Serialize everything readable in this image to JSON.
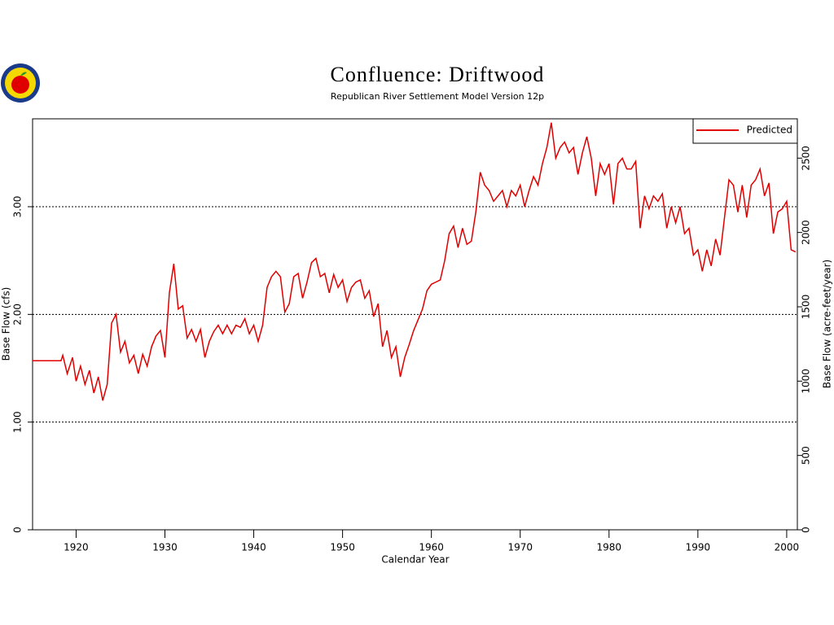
{
  "chart_data": {
    "type": "line",
    "title": "Confluence:  Driftwood",
    "subtitle": "Republican River Settlement Model Version 12p",
    "x_label": "Calendar Year",
    "y_label": "Base Flow (cfs)",
    "y2_label": "Base Flow (acre-feet/year)",
    "legend": "upper right",
    "xlim": [
      1915.1,
      2001.2
    ],
    "xticks": [
      1920,
      1930,
      1940,
      1950,
      1960,
      1970,
      1980,
      1990,
      2000
    ],
    "ylim": [
      0,
      3.816
    ],
    "yticks": [
      0,
      {
        "value": 1,
        "label": "1.00"
      },
      {
        "value": 2,
        "label": "2.00"
      },
      {
        "value": 3,
        "label": "3.00"
      }
    ],
    "y2lim": [
      0,
      2764.5
    ],
    "y2ticks": [
      0,
      500,
      1000,
      1500,
      2000,
      2500
    ],
    "grid": true,
    "x": [
      1915.1,
      1918.3,
      1918.5,
      1919,
      1919.6,
      1920,
      1920.5,
      1921,
      1921.5,
      1922,
      1922.5,
      1923,
      1923.5,
      1924,
      1924.5,
      1925,
      1925.5,
      1926,
      1926.5,
      1927,
      1927.5,
      1928,
      1928.5,
      1929,
      1929.5,
      1930,
      1930.5,
      1931,
      1931.5,
      1932,
      1932.5,
      1933,
      1933.5,
      1934,
      1934.5,
      1935,
      1935.5,
      1936,
      1936.5,
      1937,
      1937.5,
      1938,
      1938.5,
      1939,
      1939.5,
      1940,
      1940.5,
      1941,
      1941.5,
      1942,
      1942.5,
      1943,
      1943.5,
      1944,
      1944.5,
      1945,
      1945.5,
      1946,
      1946.5,
      1947,
      1947.5,
      1948,
      1948.5,
      1949,
      1949.5,
      1950,
      1950.5,
      1951,
      1951.5,
      1952,
      1952.5,
      1953,
      1953.5,
      1954,
      1954.5,
      1955,
      1955.5,
      1956,
      1956.5,
      1957,
      1957.5,
      1958,
      1958.5,
      1959,
      1959.5,
      1960,
      1960.5,
      1961,
      1961.5,
      1962,
      1962.5,
      1963,
      1963.5,
      1964,
      1964.5,
      1965,
      1965.5,
      1966,
      1966.5,
      1967,
      1967.5,
      1968,
      1968.5,
      1969,
      1969.5,
      1970,
      1970.5,
      1971,
      1971.5,
      1972,
      1972.5,
      1973,
      1973.5,
      1974,
      1974.5,
      1975,
      1975.5,
      1976,
      1976.5,
      1977,
      1977.5,
      1978,
      1978.5,
      1979,
      1979.5,
      1980,
      1980.5,
      1981,
      1981.5,
      1982,
      1982.5,
      1983,
      1983.5,
      1984,
      1984.5,
      1985,
      1985.5,
      1986,
      1986.5,
      1987,
      1987.5,
      1988,
      1988.5,
      1989,
      1989.5,
      1990,
      1990.5,
      1991,
      1991.5,
      1992,
      1992.5,
      1993,
      1993.5,
      1994,
      1994.5,
      1995,
      1995.5,
      1996,
      1996.5,
      1997,
      1997.5,
      1998,
      1998.5,
      1999,
      1999.5,
      2000,
      2000.5,
      2001
    ],
    "series": [
      {
        "name": "Predicted",
        "color": "#e00000",
        "values": [
          1.57,
          1.57,
          1.62,
          1.45,
          1.6,
          1.38,
          1.52,
          1.35,
          1.48,
          1.27,
          1.42,
          1.2,
          1.35,
          1.92,
          2.0,
          1.65,
          1.75,
          1.55,
          1.62,
          1.45,
          1.63,
          1.52,
          1.7,
          1.8,
          1.85,
          1.6,
          2.2,
          2.47,
          2.05,
          2.08,
          1.78,
          1.86,
          1.75,
          1.86,
          1.6,
          1.75,
          1.84,
          1.9,
          1.82,
          1.9,
          1.82,
          1.9,
          1.88,
          1.96,
          1.82,
          1.9,
          1.75,
          1.9,
          2.25,
          2.35,
          2.4,
          2.35,
          2.02,
          2.1,
          2.35,
          2.38,
          2.15,
          2.3,
          2.48,
          2.52,
          2.35,
          2.38,
          2.2,
          2.37,
          2.25,
          2.32,
          2.12,
          2.25,
          2.3,
          2.32,
          2.15,
          2.22,
          1.98,
          2.1,
          1.7,
          1.85,
          1.6,
          1.7,
          1.42,
          1.6,
          1.72,
          1.85,
          1.95,
          2.05,
          2.22,
          2.28,
          2.3,
          2.32,
          2.5,
          2.75,
          2.82,
          2.62,
          2.8,
          2.65,
          2.68,
          2.95,
          3.32,
          3.2,
          3.15,
          3.05,
          3.1,
          3.15,
          3.0,
          3.15,
          3.1,
          3.2,
          3.0,
          3.15,
          3.28,
          3.2,
          3.4,
          3.55,
          3.78,
          3.45,
          3.55,
          3.6,
          3.5,
          3.55,
          3.3,
          3.5,
          3.65,
          3.45,
          3.1,
          3.4,
          3.3,
          3.4,
          3.02,
          3.4,
          3.45,
          3.35,
          3.35,
          3.42,
          2.8,
          3.1,
          2.98,
          3.1,
          3.05,
          3.12,
          2.8,
          3.0,
          2.85,
          3.0,
          2.75,
          2.8,
          2.55,
          2.6,
          2.4,
          2.6,
          2.45,
          2.7,
          2.55,
          2.9,
          3.25,
          3.2,
          2.95,
          3.2,
          2.9,
          3.2,
          3.25,
          3.35,
          3.1,
          3.22,
          2.75,
          2.95,
          2.98,
          3.05,
          2.6,
          2.58
        ]
      }
    ]
  }
}
